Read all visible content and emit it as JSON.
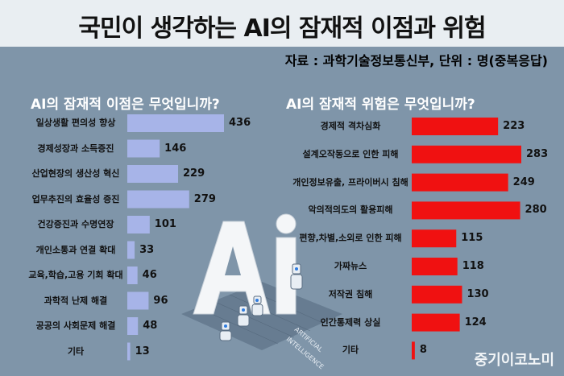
{
  "title": "국민이 생각하는 AI의 잠재적 이점과 위험",
  "source": "자료 : 과학기술정보통신부, 단위 : 명(중복응답)",
  "watermark": "중기이코노미",
  "colors": {
    "benefit": "#a7b4e8",
    "risk": "#f01111",
    "background": "#7f95a9"
  },
  "chart_data": [
    {
      "type": "bar",
      "orientation": "horizontal",
      "title": "AI의 잠재적 이점은 무엇입니까?",
      "categories": [
        "일상생활 편의성 향상",
        "경제성장과 소득증진",
        "산업현장의 생산성 혁신",
        "업무추진의 효율성 증진",
        "건강증진과 수명연장",
        "개인소통과 연결 확대",
        "교육,학습,고용 기회 확대",
        "과학적 난제 해결",
        "공공의 사회문제 해결",
        "기타"
      ],
      "values": [
        436,
        146,
        229,
        279,
        101,
        33,
        46,
        96,
        48,
        13
      ]
    },
    {
      "type": "bar",
      "orientation": "horizontal",
      "title": "AI의 잠재적 위험은 무엇입니까?",
      "categories": [
        "경제적 격차심화",
        "설계오작동으로 인한 피해",
        "개인정보유출, 프라이버시 침해",
        "악의적의도의 활용피해",
        "편향,차별,소외로 인한 피해",
        "가짜뉴스",
        "저작권 침해",
        "인간통제력 상실",
        "기타"
      ],
      "values": [
        223,
        283,
        249,
        280,
        115,
        118,
        130,
        124,
        8
      ]
    }
  ]
}
